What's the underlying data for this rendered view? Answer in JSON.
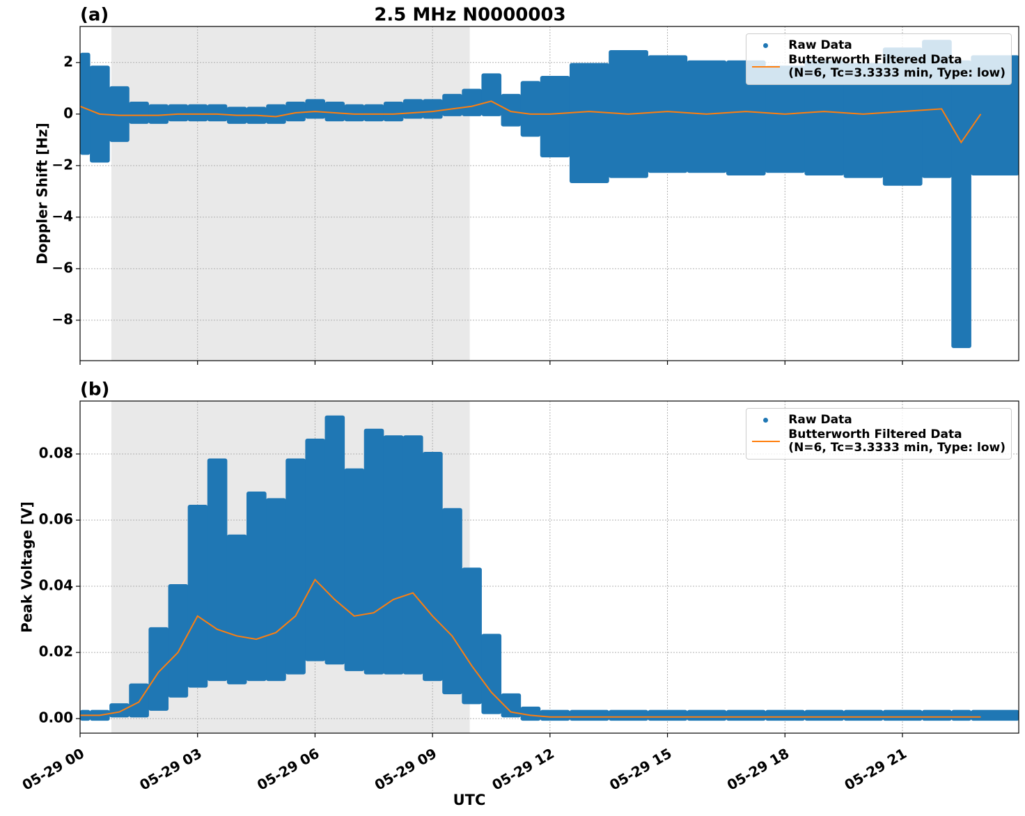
{
  "chart_data": [
    {
      "type": "scatter",
      "panel_label": "(a)",
      "title": "2.5 MHz N0000003",
      "ylabel": "Doppler Shift [Hz]",
      "xlim": [
        0,
        23.97
      ],
      "ylim": [
        -9.57,
        3.4
      ],
      "grid": true,
      "shaded_span": [
        0.8,
        9.95
      ],
      "legend": "upper right",
      "xticks": [
        0,
        3,
        6,
        9,
        12,
        15,
        18,
        21
      ],
      "yticks": [
        {
          "value": -8,
          "label": "−8"
        },
        {
          "value": -6,
          "label": "−6"
        },
        {
          "value": -4,
          "label": "−4"
        },
        {
          "value": -2,
          "label": "−2"
        },
        0,
        2
      ],
      "x": [
        0,
        0.5,
        1,
        1.5,
        2,
        2.5,
        3,
        3.5,
        4,
        4.5,
        5,
        5.5,
        6,
        6.5,
        7,
        7.5,
        8,
        8.5,
        9,
        9.5,
        10,
        10.5,
        11,
        11.5,
        12,
        13,
        14,
        15,
        16,
        17,
        18,
        19,
        20,
        21,
        22,
        22.5,
        23
      ],
      "series": [
        {
          "name": "Raw Data",
          "color": "#1f77b4",
          "low": [
            -1.5,
            -1.8,
            -1.0,
            -0.3,
            -0.3,
            -0.2,
            -0.2,
            -0.2,
            -0.3,
            -0.3,
            -0.3,
            -0.2,
            -0.1,
            -0.2,
            -0.2,
            -0.2,
            -0.2,
            -0.1,
            -0.1,
            0,
            0,
            0,
            -0.4,
            -0.8,
            -1.6,
            -2.6,
            -2.4,
            -2.2,
            -2.2,
            -2.3,
            -2.2,
            -2.3,
            -2.4,
            -2.7,
            -2.4,
            -9.0,
            -2.3
          ],
          "high": [
            2.3,
            1.8,
            1.0,
            0.4,
            0.3,
            0.3,
            0.3,
            0.3,
            0.2,
            0.2,
            0.3,
            0.4,
            0.5,
            0.4,
            0.3,
            0.3,
            0.4,
            0.5,
            0.5,
            0.7,
            0.9,
            1.5,
            0.7,
            1.2,
            1.4,
            1.9,
            2.4,
            2.2,
            2.0,
            2.0,
            1.8,
            2.0,
            1.9,
            2.5,
            2.8,
            2.0,
            2.2
          ]
        },
        {
          "name": "Butterworth Filtered Data\n(N=6, Tc=3.3333 min, Type: low)",
          "color": "#ff7f0e",
          "values": [
            0.3,
            0,
            -0.05,
            -0.05,
            -0.05,
            0,
            0,
            0,
            -0.05,
            -0.05,
            -0.1,
            0.05,
            0.1,
            0.05,
            0,
            0,
            0,
            0.05,
            0.1,
            0.2,
            0.3,
            0.5,
            0.1,
            0,
            0,
            0.1,
            0,
            0.1,
            0,
            0.1,
            0,
            0.1,
            0,
            0.1,
            0.2,
            -1.1,
            0
          ]
        }
      ]
    },
    {
      "type": "scatter",
      "panel_label": "(b)",
      "ylabel": "Peak Voltage [V]",
      "xlabel": "UTC",
      "xlim": [
        0,
        23.97
      ],
      "ylim": [
        -0.0044,
        0.096
      ],
      "grid": true,
      "shaded_span": [
        0.8,
        9.95
      ],
      "legend": "upper right",
      "xticks": [
        {
          "value": 0,
          "label": "05-29 00"
        },
        {
          "value": 3,
          "label": "05-29 03"
        },
        {
          "value": 6,
          "label": "05-29 06"
        },
        {
          "value": 9,
          "label": "05-29 09"
        },
        {
          "value": 12,
          "label": "05-29 12"
        },
        {
          "value": 15,
          "label": "05-29 15"
        },
        {
          "value": 18,
          "label": "05-29 18"
        },
        {
          "value": 21,
          "label": "05-29 21"
        }
      ],
      "yticks": [
        {
          "value": 0,
          "label": "0.00"
        },
        {
          "value": 0.02,
          "label": "0.02"
        },
        {
          "value": 0.04,
          "label": "0.04"
        },
        {
          "value": 0.06,
          "label": "0.06"
        },
        {
          "value": 0.08,
          "label": "0.08"
        }
      ],
      "x": [
        0,
        0.5,
        1,
        1.5,
        2,
        2.5,
        3,
        3.5,
        4,
        4.5,
        5,
        5.5,
        6,
        6.5,
        7,
        7.5,
        8,
        8.5,
        9,
        9.5,
        10,
        10.5,
        11,
        11.5,
        12,
        13,
        14,
        15,
        16,
        17,
        18,
        19,
        20,
        21,
        22,
        22.5,
        23
      ],
      "series": [
        {
          "name": "Raw Data",
          "color": "#1f77b4",
          "low": [
            0,
            0,
            0.001,
            0.001,
            0.003,
            0.007,
            0.01,
            0.012,
            0.011,
            0.012,
            0.012,
            0.014,
            0.018,
            0.017,
            0.015,
            0.014,
            0.014,
            0.014,
            0.012,
            0.008,
            0.005,
            0.002,
            0.001,
            0,
            0,
            0,
            0,
            0,
            0,
            0,
            0,
            0,
            0,
            0,
            0,
            0,
            0
          ],
          "high": [
            0.002,
            0.002,
            0.004,
            0.01,
            0.027,
            0.04,
            0.064,
            0.078,
            0.055,
            0.068,
            0.066,
            0.078,
            0.084,
            0.091,
            0.075,
            0.087,
            0.085,
            0.085,
            0.08,
            0.063,
            0.045,
            0.025,
            0.007,
            0.003,
            0.002,
            0.002,
            0.002,
            0.002,
            0.002,
            0.002,
            0.002,
            0.002,
            0.002,
            0.002,
            0.002,
            0.002,
            0.002
          ]
        },
        {
          "name": "Butterworth Filtered Data\n(N=6, Tc=3.3333 min, Type: low)",
          "color": "#ff7f0e",
          "values": [
            0.001,
            0.001,
            0.002,
            0.005,
            0.014,
            0.02,
            0.031,
            0.027,
            0.025,
            0.024,
            0.026,
            0.031,
            0.042,
            0.036,
            0.031,
            0.032,
            0.036,
            0.038,
            0.031,
            0.025,
            0.016,
            0.008,
            0.002,
            0.001,
            0.0005,
            0.0005,
            0.0005,
            0.0005,
            0.0005,
            0.0005,
            0.0005,
            0.0005,
            0.0005,
            0.0005,
            0.0005,
            0.0005,
            0.0005
          ]
        }
      ]
    }
  ]
}
